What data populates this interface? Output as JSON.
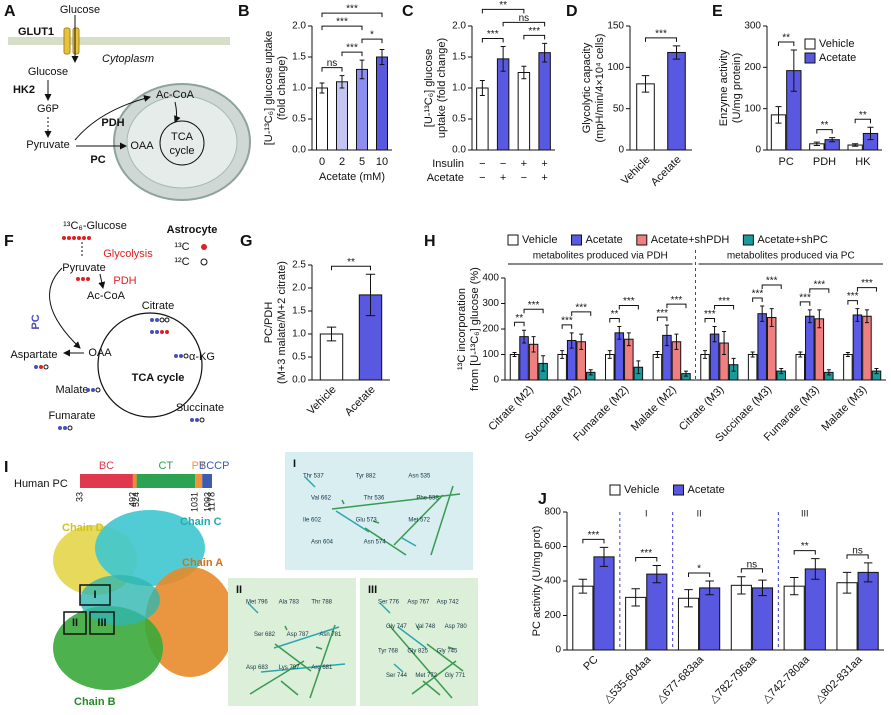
{
  "panel_labels": [
    "A",
    "B",
    "C",
    "D",
    "E",
    "F",
    "G",
    "H",
    "I",
    "J"
  ],
  "panel_a": {
    "glucose_out": "Glucose",
    "transporter": "GLUT1",
    "compartment": "Cytoplasm",
    "glucose_in": "Glucose",
    "hk": "HK2",
    "g6p": "G6P",
    "pyruvate": "Pyruvate",
    "pdh": "PDH",
    "pc": "PC",
    "oaa": "OAA",
    "acetyl_coa": "Ac-CoA",
    "cycle": [
      "TCA",
      "cycle"
    ]
  },
  "panel_f": {
    "glucose": "¹³C₆-Glucose",
    "cell": "Astrocyte",
    "glycolysis": "Glycolysis",
    "legend": [
      "¹³C",
      "¹²C"
    ],
    "pyruvate": "Pyruvate",
    "pdh": "PDH",
    "acetyl_coa": "Ac-CoA",
    "citrate": "Citrate",
    "pc": "PC",
    "aspartate": "Aspartate",
    "oaa": "OAA",
    "akg": "α-KG",
    "cycle": "TCA cycle",
    "malate": "Malate",
    "fumarate": "Fumarate",
    "succinate": "Succinate"
  },
  "panel_i": {
    "protein": "Human PC",
    "domains": {
      "names": [
        "BC",
        null,
        "CT",
        "PT",
        "BCCP"
      ],
      "colors": [
        "#e0394e",
        "#f08a2a",
        "#2ba352",
        "#f0943a",
        "#3d5bb0"
      ],
      "bounds": [
        33,
        492,
        524,
        1031,
        1093,
        1178
      ]
    },
    "chains": [
      "Chain D",
      "Chain C",
      "Chain A",
      "Chain B"
    ],
    "sites": [
      "I",
      "II",
      "III"
    ],
    "zoom": [
      {
        "label": "I",
        "residues": [
          "Thr 537",
          "Tyr 882",
          "Asn 535",
          "Val 662",
          "Thr 536",
          "Phe 538",
          "Ile 602",
          "Glu 573",
          "Met 572",
          "Asn 604",
          "Asn 574"
        ]
      },
      {
        "label": "II",
        "residues": [
          "Met 796",
          "Ala 783",
          "Thr 788",
          "Ser 682",
          "Asp 787",
          "Asn 781",
          "Asp 683",
          "Lys 797",
          "Arg 681"
        ]
      },
      {
        "label": "III",
        "residues": [
          "Ser 776",
          "Asp 767",
          "Asp 742",
          "Gly 747",
          "Val 748",
          "Asp 780",
          "Tyr 768",
          "Gly 825",
          "Gly 745",
          "Ser 744",
          "Met 772",
          "Gly 771"
        ]
      }
    ]
  },
  "chart_data": [
    {
      "type": "bar",
      "ylabel": [
        "[U-¹³C₆] glucose uptake",
        "(fold change)"
      ],
      "xlabel": "Acetate (mM)",
      "categories": [
        "0",
        "2",
        "5",
        "10"
      ],
      "values": [
        1.0,
        1.1,
        1.3,
        1.5
      ],
      "errors": [
        0.08,
        0.1,
        0.15,
        0.12
      ],
      "colors": [
        "#ffffff",
        "#c5c5f5",
        "#8e8ef0",
        "#5858e0"
      ],
      "ylim": [
        0,
        2.0
      ],
      "yticks": [
        {
          "value": 0,
          "label": "0.0"
        },
        {
          "value": 0.5,
          "label": "0.5"
        },
        {
          "value": 1.0,
          "label": "1.0"
        },
        {
          "value": 1.5,
          "label": "1.5"
        },
        {
          "value": 2.0,
          "label": "2.0"
        }
      ],
      "annotations": [
        {
          "label": "ns",
          "between": [
            0,
            1
          ]
        },
        {
          "label": "***",
          "between": [
            1,
            2
          ]
        },
        {
          "label": "*",
          "between": [
            2,
            3
          ]
        },
        {
          "label": "***",
          "between": [
            0,
            2
          ]
        },
        {
          "label": "***",
          "between": [
            0,
            3
          ]
        }
      ]
    },
    {
      "type": "bar",
      "ylabel": [
        "[U-¹³C₆] glucose",
        "uptake (fold change)"
      ],
      "categories": [
        null,
        null,
        null,
        null
      ],
      "row_labels": [
        "Insulin",
        "Acetate"
      ],
      "rows": [
        [
          "−",
          "−",
          "+",
          "+"
        ],
        [
          "−",
          "+",
          "−",
          "+"
        ]
      ],
      "values": [
        1.0,
        1.47,
        1.25,
        1.57
      ],
      "errors": [
        0.12,
        0.2,
        0.1,
        0.15
      ],
      "colors": [
        "#ffffff",
        "#5858e0",
        "#ffffff",
        "#5858e0"
      ],
      "ylim": [
        0,
        2.0
      ],
      "yticks": [
        {
          "value": 0,
          "label": "0.0"
        },
        {
          "value": 0.5,
          "label": "0.5"
        },
        {
          "value": 1.0,
          "label": "1.0"
        },
        {
          "value": 1.5,
          "label": "1.5"
        },
        {
          "value": 2.0,
          "label": "2.0"
        }
      ],
      "annotations": [
        {
          "label": "***",
          "between": [
            0,
            1
          ]
        },
        {
          "label": "***",
          "between": [
            2,
            3
          ]
        },
        {
          "label": "ns",
          "between": [
            1,
            3
          ]
        },
        {
          "label": "**",
          "between": [
            0,
            2
          ]
        }
      ]
    },
    {
      "type": "bar",
      "ylabel": [
        "Glycolytic capacity",
        "(mpH/min/4×10⁴ cells)"
      ],
      "categories": [
        "Vehicle",
        "Acetate"
      ],
      "values": [
        80,
        118
      ],
      "errors": [
        10,
        8
      ],
      "colors": [
        "#ffffff",
        "#5858e0"
      ],
      "ylim": [
        0,
        150
      ],
      "yticks": [
        0,
        50,
        100,
        150
      ],
      "annotations": [
        {
          "label": "***",
          "between": [
            0,
            1
          ]
        }
      ]
    },
    {
      "type": "bar",
      "ylabel": [
        "Enzyme activity",
        "(U/mg protein)"
      ],
      "categories": [
        "PC",
        "PDH",
        "HK"
      ],
      "series": [
        {
          "name": "Vehicle",
          "color": "#ffffff",
          "values": [
            85,
            15,
            12
          ],
          "errors": [
            20,
            4,
            3
          ]
        },
        {
          "name": "Acetate",
          "color": "#5858e0",
          "values": [
            192,
            25,
            40
          ],
          "errors": [
            50,
            5,
            15
          ]
        }
      ],
      "ylim": [
        0,
        300
      ],
      "yticks": [
        0,
        100,
        200,
        300
      ],
      "legend": "upper right",
      "annotations": [
        {
          "label": "**",
          "group": 0,
          "between": [
            0,
            1
          ]
        },
        {
          "label": "**",
          "group": 1,
          "between": [
            0,
            1
          ]
        },
        {
          "label": "**",
          "group": 2,
          "between": [
            0,
            1
          ]
        }
      ]
    },
    {
      "type": "bar",
      "ylabel": [
        "PC/PDH",
        "(M+3 malate/M+2 citrate)"
      ],
      "categories": [
        "Vehicle",
        "Acetate"
      ],
      "values": [
        1.0,
        1.85
      ],
      "errors": [
        0.15,
        0.45
      ],
      "colors": [
        "#ffffff",
        "#5858e0"
      ],
      "ylim": [
        0,
        2.5
      ],
      "yticks": [
        {
          "value": 0,
          "label": "0.0"
        },
        {
          "value": 0.5,
          "label": "0.5"
        },
        {
          "value": 1.0,
          "label": "1.0"
        },
        {
          "value": 1.5,
          "label": "1.5"
        },
        {
          "value": 2.0,
          "label": "2.0"
        },
        {
          "value": 2.5,
          "label": "2.5"
        }
      ],
      "annotations": [
        {
          "label": "**",
          "between": [
            0,
            1
          ]
        }
      ]
    },
    {
      "type": "bar",
      "ylabel": [
        "¹³C incorporation",
        "from [U-¹³C₆] glucose (%)"
      ],
      "categories": [
        "Citrate (M2)",
        "Succinate (M2)",
        "Fumarate (M2)",
        "Malate (M2)",
        "Citrate (M3)",
        "Succinate (M3)",
        "Fumarate (M3)",
        "Malate (M3)"
      ],
      "series": [
        {
          "name": "Vehicle",
          "color": "#ffffff",
          "values": [
            100,
            100,
            100,
            100,
            100,
            100,
            100,
            100
          ],
          "errors": [
            8,
            15,
            15,
            12,
            15,
            10,
            10,
            8
          ]
        },
        {
          "name": "Acetate",
          "color": "#5a5ae6",
          "values": [
            170,
            155,
            185,
            175,
            180,
            260,
            250,
            255
          ],
          "errors": [
            25,
            30,
            25,
            40,
            30,
            30,
            25,
            25
          ]
        },
        {
          "name": "Acetate+shPDH",
          "color": "#f08080",
          "values": [
            140,
            150,
            160,
            150,
            145,
            245,
            240,
            250
          ],
          "errors": [
            30,
            30,
            25,
            30,
            45,
            35,
            35,
            25
          ]
        },
        {
          "name": "Acetate+shPC",
          "color": "#1a9a9a",
          "values": [
            65,
            30,
            50,
            25,
            60,
            35,
            30,
            35
          ],
          "errors": [
            30,
            10,
            25,
            10,
            25,
            10,
            10,
            10
          ]
        }
      ],
      "ylim": [
        0,
        400
      ],
      "yticks": [
        0,
        100,
        200,
        300,
        400
      ],
      "legend": "top",
      "group_notes": [
        {
          "label": "metabolites produced via PDH",
          "from": 0,
          "to": 3
        },
        {
          "label": "metabolites produced via PC",
          "from": 4,
          "to": 7
        }
      ],
      "annotations": [
        {
          "label": "**",
          "group": 0,
          "between": [
            0,
            1
          ]
        },
        {
          "label": "***",
          "group": 0,
          "between": [
            1,
            3
          ]
        },
        {
          "label": "***",
          "group": 1,
          "between": [
            0,
            1
          ]
        },
        {
          "label": "***",
          "group": 1,
          "between": [
            1,
            3
          ]
        },
        {
          "label": "**",
          "group": 2,
          "between": [
            0,
            1
          ]
        },
        {
          "label": "***",
          "group": 2,
          "between": [
            1,
            3
          ]
        },
        {
          "label": "***",
          "group": 3,
          "between": [
            0,
            1
          ]
        },
        {
          "label": "***",
          "group": 3,
          "between": [
            1,
            3
          ]
        },
        {
          "label": "***",
          "group": 4,
          "between": [
            0,
            1
          ]
        },
        {
          "label": "***",
          "group": 4,
          "between": [
            1,
            3
          ]
        },
        {
          "label": "***",
          "group": 5,
          "between": [
            0,
            1
          ]
        },
        {
          "label": "***",
          "group": 5,
          "between": [
            1,
            3
          ]
        },
        {
          "label": "***",
          "group": 6,
          "between": [
            0,
            1
          ]
        },
        {
          "label": "***",
          "group": 6,
          "between": [
            1,
            3
          ]
        },
        {
          "label": "***",
          "group": 7,
          "between": [
            0,
            1
          ]
        },
        {
          "label": "***",
          "group": 7,
          "between": [
            1,
            3
          ]
        }
      ]
    },
    {
      "type": "bar",
      "ylabel": [
        "PC activity (U/mg prot)"
      ],
      "categories": [
        "PC",
        "△535-604aa",
        "△677-683aa",
        "△782-796aa",
        "△742-780aa",
        "△802-831aa"
      ],
      "series": [
        {
          "name": "Vehicle",
          "color": "#ffffff",
          "values": [
            370,
            305,
            300,
            375,
            370,
            390
          ],
          "errors": [
            40,
            50,
            50,
            50,
            50,
            60
          ]
        },
        {
          "name": "Acetate",
          "color": "#5858e0",
          "values": [
            540,
            440,
            360,
            360,
            470,
            450
          ],
          "errors": [
            55,
            50,
            40,
            45,
            60,
            55
          ]
        }
      ],
      "ylim": [
        0,
        800
      ],
      "yticks": [
        0,
        200,
        400,
        600,
        800
      ],
      "legend": "top",
      "region_labels": [
        {
          "label": "I",
          "category": 1
        },
        {
          "label": "II",
          "category": 2
        },
        {
          "label": "III",
          "category": 4
        }
      ],
      "annotations": [
        {
          "label": "***",
          "group": 0,
          "between": [
            0,
            1
          ]
        },
        {
          "label": "***",
          "group": 1,
          "between": [
            0,
            1
          ]
        },
        {
          "label": "*",
          "group": 2,
          "between": [
            0,
            1
          ]
        },
        {
          "label": "ns",
          "group": 3,
          "between": [
            0,
            1
          ]
        },
        {
          "label": "**",
          "group": 4,
          "between": [
            0,
            1
          ]
        },
        {
          "label": "ns",
          "group": 5,
          "between": [
            0,
            1
          ]
        }
      ]
    }
  ]
}
